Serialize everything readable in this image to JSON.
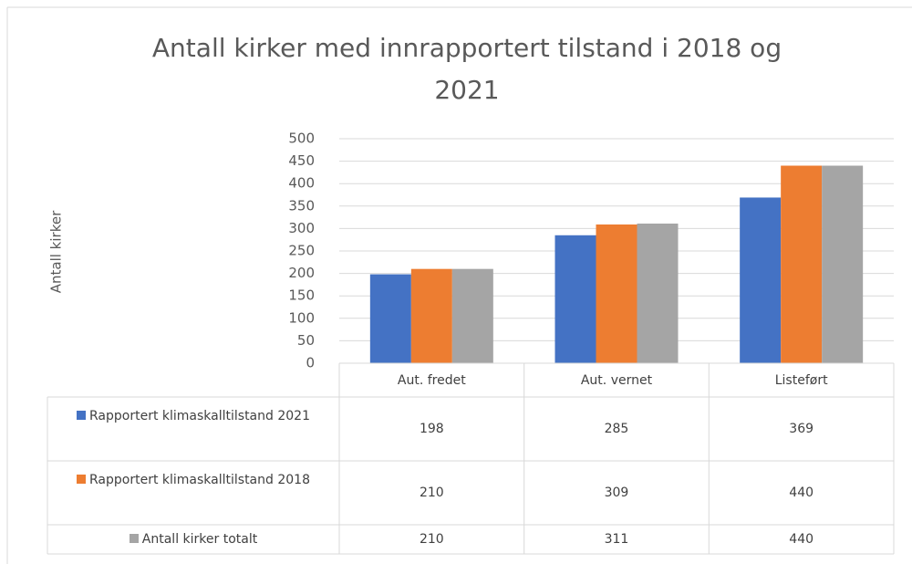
{
  "chart_data": {
    "type": "bar",
    "title": "Antall kirker med innrapportert tilstand i 2018 og 2021",
    "y_label": "Antall kirker",
    "categories": [
      "Aut. fredet",
      "Aut. vernet",
      "Listeført"
    ],
    "series": [
      {
        "name": "Rapportert klimaskalltilstand 2021",
        "color": "#4472c4",
        "values": [
          198,
          285,
          369
        ]
      },
      {
        "name": "Rapportert klimaskalltilstand 2018",
        "color": "#ed7d31",
        "values": [
          210,
          309,
          440
        ]
      },
      {
        "name": "Antall kirker totalt",
        "color": "#a5a5a5",
        "values": [
          210,
          311,
          440
        ]
      }
    ],
    "ylim": [
      0,
      500
    ],
    "yticks": [
      0,
      50,
      100,
      150,
      200,
      250,
      300,
      350,
      400,
      450,
      500
    ],
    "grid": true,
    "data_table": true
  }
}
